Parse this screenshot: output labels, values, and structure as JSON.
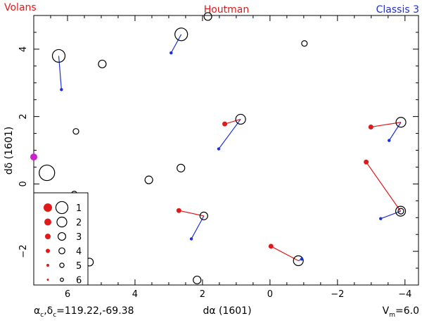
{
  "header": {
    "left": "Volans",
    "center": "Houtman",
    "right": "Classis 3",
    "left_color": "#e0191b",
    "center_color": "#e0191b",
    "right_color": "#1f2fd6"
  },
  "footer": {
    "alpha": "α",
    "c": "c",
    "comma": ",",
    "delta": "δ",
    "coords_value": "=119.22,-69.38",
    "vm_v": "V",
    "vm_sub": "m",
    "vm_value": "=6.0"
  },
  "legend": {
    "labels": [
      "1",
      "2",
      "3",
      "4",
      "5",
      "6"
    ]
  },
  "chart_data": {
    "type": "scatter",
    "xlabel": "dα (1601)",
    "ylabel": "dδ (1601)",
    "xlim": [
      7.0,
      -4.4
    ],
    "ylim": [
      -3.0,
      5.0
    ],
    "x_ticks": [
      6,
      4,
      2,
      0,
      -2,
      -4
    ],
    "y_ticks": [
      -2,
      0,
      2,
      4
    ],
    "grid": false,
    "legend_position": "bottom-left",
    "colors": {
      "houtman": "#e0191b",
      "modern": "#1f2fd6",
      "extra": "#cc22cc",
      "open": "#000000"
    },
    "open_stars": [
      {
        "x": 6.26,
        "y": 3.8,
        "mag": 2
      },
      {
        "x": 2.63,
        "y": 4.44,
        "mag": 2
      },
      {
        "x": 1.84,
        "y": 4.97,
        "mag": 4
      },
      {
        "x": -1.02,
        "y": 4.17,
        "mag": 5
      },
      {
        "x": 4.97,
        "y": 3.56,
        "mag": 4
      },
      {
        "x": 5.75,
        "y": 1.56,
        "mag": 5
      },
      {
        "x": 0.87,
        "y": 1.92,
        "mag": 3
      },
      {
        "x": -3.88,
        "y": 1.83,
        "mag": 3
      },
      {
        "x": 6.61,
        "y": 0.33,
        "mag": 1
      },
      {
        "x": 2.64,
        "y": 0.47,
        "mag": 4
      },
      {
        "x": 3.59,
        "y": 0.12,
        "mag": 4
      },
      {
        "x": 1.96,
        "y": -0.95,
        "mag": 4
      },
      {
        "x": -3.87,
        "y": -0.81,
        "mag": 3
      },
      {
        "x": -3.88,
        "y": -0.81,
        "mag": 5
      },
      {
        "x": -0.84,
        "y": -2.28,
        "mag": 3
      },
      {
        "x": 5.35,
        "y": -2.32,
        "mag": 4
      },
      {
        "x": 2.16,
        "y": -2.85,
        "mag": 4
      },
      {
        "x": 5.8,
        "y": -0.3,
        "mag": 5
      }
    ],
    "houtman_stars": [
      {
        "x": 1.34,
        "y": 1.78,
        "mag": 4
      },
      {
        "x": -2.99,
        "y": 1.69,
        "mag": 4
      },
      {
        "x": -2.85,
        "y": 0.65,
        "mag": 4
      },
      {
        "x": 2.7,
        "y": -0.79,
        "mag": 4
      },
      {
        "x": -0.03,
        "y": -1.85,
        "mag": 4
      }
    ],
    "modern_stars": [
      {
        "x": 6.18,
        "y": 2.8,
        "mag": 5
      },
      {
        "x": 2.93,
        "y": 3.89,
        "mag": 5
      },
      {
        "x": 1.52,
        "y": 1.04,
        "mag": 5
      },
      {
        "x": -3.53,
        "y": 1.29,
        "mag": 5
      },
      {
        "x": 2.33,
        "y": -1.63,
        "mag": 5
      },
      {
        "x": -3.28,
        "y": -1.03,
        "mag": 5
      },
      {
        "x": -0.94,
        "y": -2.23,
        "mag": 5
      }
    ],
    "extra_stars": [
      {
        "x": 7.0,
        "y": 0.8,
        "mag": 3
      }
    ],
    "houtman_lines": [
      [
        1.34,
        1.78,
        0.87,
        1.92
      ],
      [
        -2.99,
        1.69,
        -3.88,
        1.83
      ],
      [
        -2.85,
        0.65,
        -3.87,
        -0.81
      ],
      [
        2.7,
        -0.79,
        1.96,
        -0.95
      ],
      [
        -0.03,
        -1.85,
        -0.84,
        -2.28
      ]
    ],
    "modern_lines": [
      [
        6.18,
        2.8,
        6.26,
        3.8
      ],
      [
        2.93,
        3.89,
        2.63,
        4.44
      ],
      [
        1.52,
        1.04,
        0.87,
        1.92
      ],
      [
        -3.53,
        1.29,
        -3.88,
        1.83
      ],
      [
        2.33,
        -1.63,
        1.96,
        -0.95
      ],
      [
        -3.28,
        -1.03,
        -3.87,
        -0.81
      ],
      [
        -0.94,
        -2.23,
        -0.84,
        -2.28
      ]
    ]
  }
}
